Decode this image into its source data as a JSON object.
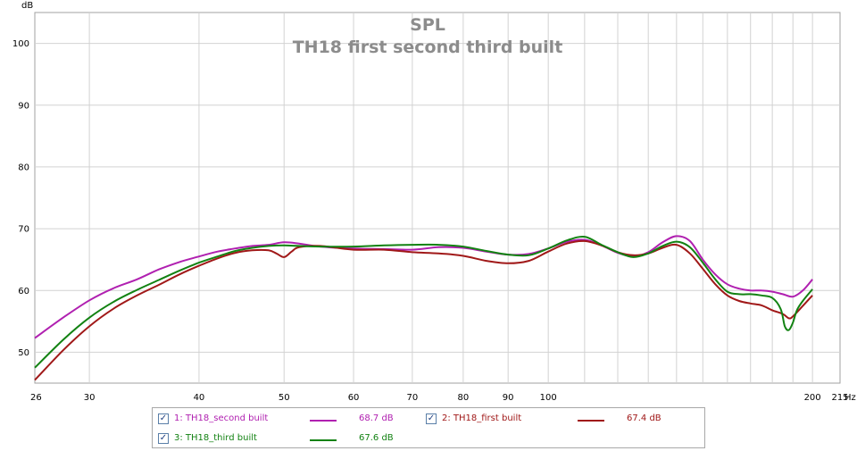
{
  "chart_data": {
    "type": "line",
    "title": "SPL",
    "subtitle": "TH18 first second third built",
    "ylabel": "dB",
    "xlabel": "Hz",
    "x_scale": "log",
    "xlim": [
      26,
      215
    ],
    "ylim": [
      45,
      105
    ],
    "grid": true,
    "x_ticks": [
      26,
      30,
      40,
      50,
      60,
      70,
      80,
      90,
      100,
      200,
      215
    ],
    "x_tick_labels": [
      "26",
      "30",
      "40",
      "50",
      "60",
      "70",
      "80",
      "90",
      "100",
      "200",
      "215"
    ],
    "x_minor_grid": [
      110,
      120,
      130,
      140,
      150,
      160,
      170,
      180,
      190
    ],
    "y_ticks": [
      50,
      60,
      70,
      80,
      90,
      100
    ],
    "y_tick_labels": [
      "50",
      "60",
      "70",
      "80",
      "90",
      "100"
    ],
    "legend_position": "bottom",
    "series": [
      {
        "name": "1: TH18_second built",
        "value_label": "68.7 dB",
        "color": "#b020b0",
        "x": [
          26,
          28,
          30,
          32,
          34,
          36,
          38,
          40,
          42,
          44,
          46,
          48,
          50,
          52,
          55,
          60,
          65,
          70,
          75,
          80,
          85,
          90,
          95,
          100,
          105,
          110,
          115,
          120,
          125,
          130,
          135,
          140,
          145,
          150,
          155,
          160,
          165,
          170,
          175,
          180,
          185,
          190,
          195,
          200
        ],
        "y": [
          52.3,
          55.6,
          58.4,
          60.4,
          61.8,
          63.4,
          64.6,
          65.5,
          66.3,
          66.8,
          67.2,
          67.4,
          67.8,
          67.6,
          67.1,
          66.8,
          66.7,
          66.6,
          67.0,
          66.9,
          66.3,
          65.8,
          65.9,
          66.8,
          67.9,
          68.2,
          67.3,
          66.1,
          65.5,
          66.2,
          67.8,
          68.8,
          68.0,
          65.0,
          62.6,
          61.0,
          60.3,
          60.0,
          60.0,
          59.8,
          59.4,
          59.0,
          60.0,
          61.8
        ]
      },
      {
        "name": "2: TH18_first built",
        "value_label": "67.4 dB",
        "color": "#a01818",
        "x": [
          26,
          28,
          30,
          32,
          34,
          36,
          38,
          40,
          42,
          44,
          46,
          48,
          49,
          50,
          51,
          52,
          55,
          60,
          65,
          70,
          75,
          80,
          85,
          90,
          95,
          100,
          105,
          110,
          115,
          120,
          125,
          130,
          135,
          140,
          145,
          150,
          155,
          160,
          165,
          170,
          175,
          180,
          185,
          188,
          190,
          195,
          200
        ],
        "y": [
          45.5,
          50.3,
          54.2,
          57.1,
          59.2,
          60.9,
          62.6,
          64.0,
          65.2,
          66.1,
          66.5,
          66.5,
          66.0,
          65.4,
          66.3,
          67.0,
          67.2,
          66.6,
          66.6,
          66.2,
          66.0,
          65.6,
          64.8,
          64.4,
          64.8,
          66.3,
          67.6,
          68.0,
          67.3,
          66.2,
          65.7,
          66.0,
          66.9,
          67.4,
          66.0,
          63.5,
          61.0,
          59.2,
          58.3,
          57.9,
          57.6,
          56.8,
          56.2,
          55.5,
          55.8,
          57.5,
          59.2
        ]
      },
      {
        "name": "3: TH18_third built",
        "value_label": "67.6 dB",
        "color": "#128212",
        "x": [
          26,
          28,
          30,
          32,
          34,
          36,
          38,
          40,
          42,
          44,
          46,
          48,
          50,
          52,
          55,
          60,
          65,
          70,
          75,
          80,
          85,
          90,
          95,
          100,
          105,
          110,
          115,
          120,
          125,
          130,
          135,
          140,
          145,
          150,
          155,
          160,
          165,
          170,
          175,
          180,
          184,
          186,
          188,
          190,
          192,
          195,
          200
        ],
        "y": [
          47.5,
          52.0,
          55.6,
          58.2,
          60.1,
          61.7,
          63.2,
          64.5,
          65.5,
          66.4,
          66.9,
          67.2,
          67.3,
          67.2,
          67.1,
          67.1,
          67.3,
          67.4,
          67.4,
          67.1,
          66.4,
          65.8,
          65.7,
          66.8,
          68.1,
          68.7,
          67.4,
          66.2,
          65.4,
          66.0,
          67.2,
          67.9,
          67.0,
          64.5,
          61.8,
          59.8,
          59.4,
          59.4,
          59.2,
          58.8,
          57.0,
          54.2,
          53.6,
          54.8,
          56.8,
          58.3,
          60.2
        ]
      }
    ]
  }
}
